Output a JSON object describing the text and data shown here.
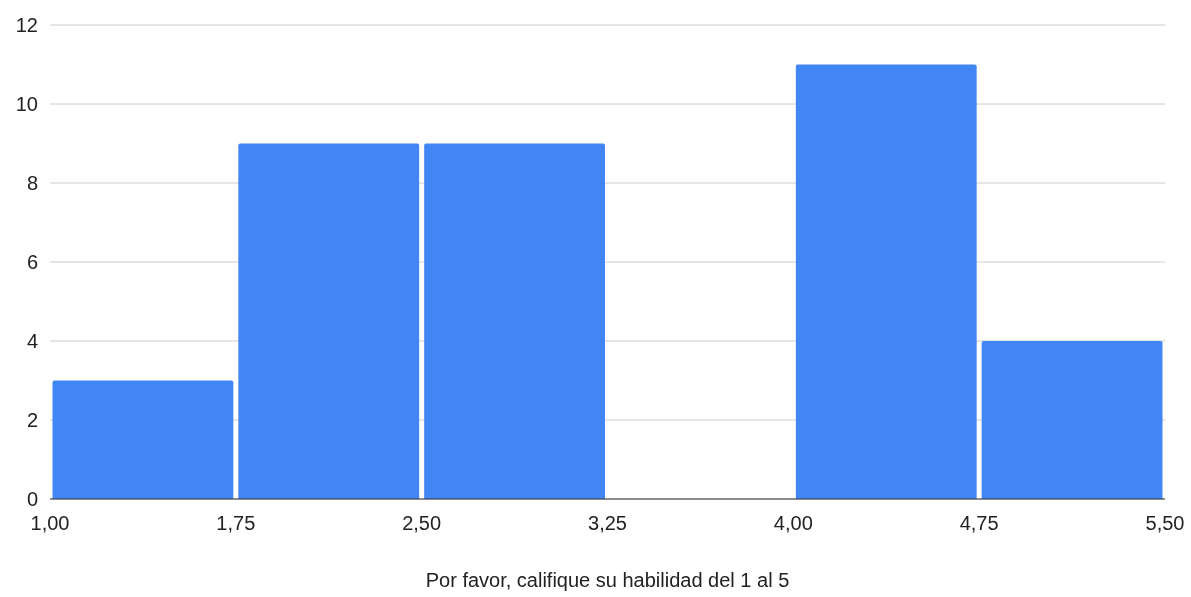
{
  "chart_data": {
    "type": "histogram",
    "xlabel": "Por favor, califique su habilidad del 1 al 5",
    "bins": [
      1,
      1.75,
      2.5,
      3.25,
      4,
      4.75,
      5.5
    ],
    "values": [
      3,
      9,
      9,
      0,
      11,
      4
    ],
    "color": "#4285f4",
    "xlim": [
      1,
      5.5
    ],
    "xticks": [
      {
        "value": 1,
        "label": "1,00"
      },
      {
        "value": 1.75,
        "label": "1,75"
      },
      {
        "value": 2.5,
        "label": "2,50"
      },
      {
        "value": 3.25,
        "label": "3,25"
      },
      {
        "value": 4,
        "label": "4,00"
      },
      {
        "value": 4.75,
        "label": "4,75"
      },
      {
        "value": 5.5,
        "label": "5,50"
      }
    ],
    "ylim": [
      0,
      12
    ],
    "yticks": [
      0,
      2,
      4,
      6,
      8,
      10,
      12
    ],
    "grid": "y"
  }
}
